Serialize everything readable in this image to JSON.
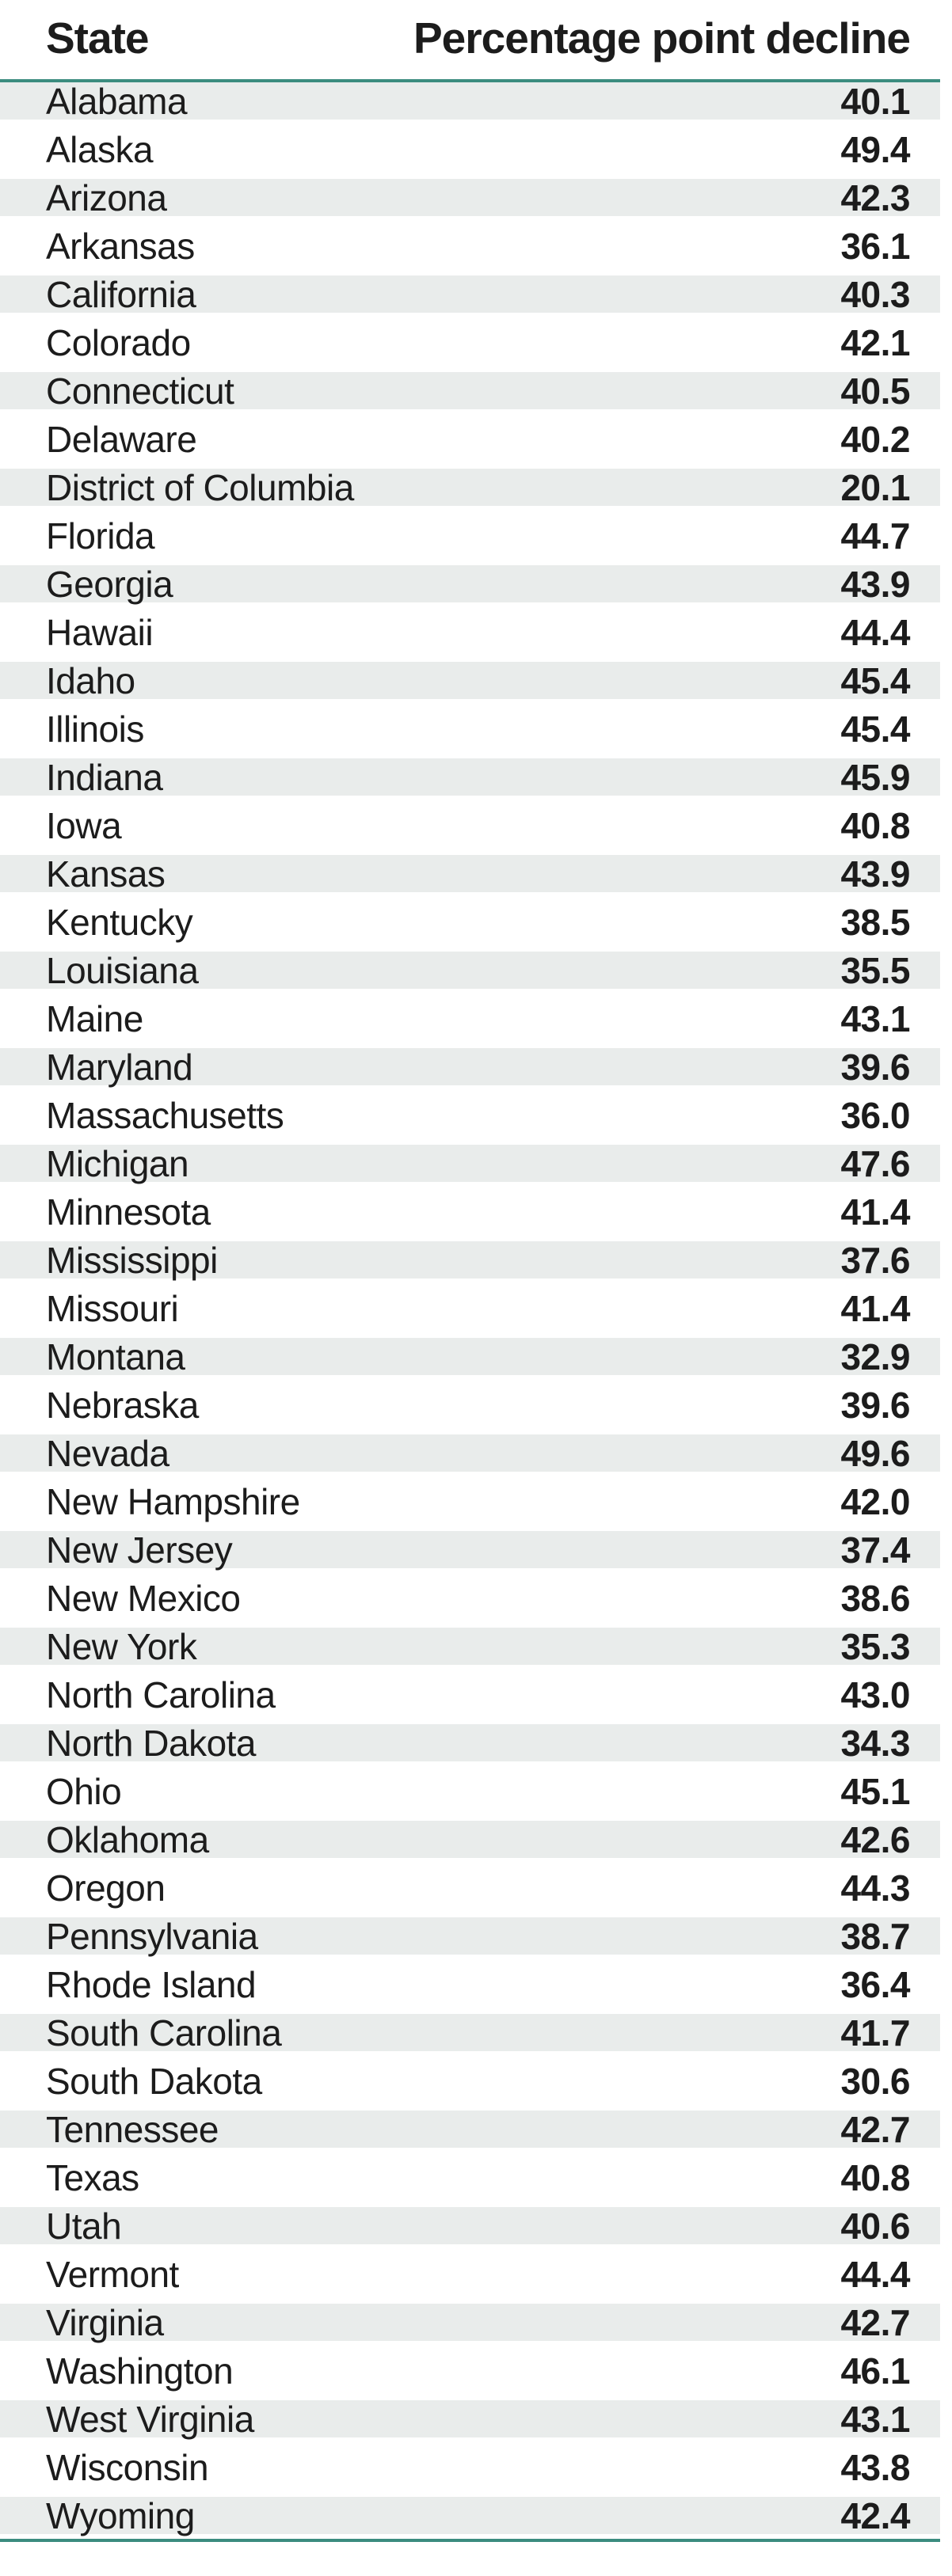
{
  "chart_data": {
    "type": "table",
    "columns": [
      "State",
      "Percentage point decline"
    ],
    "accent_color": "#3b8c7f",
    "stripe_color": "#e9eceb",
    "rows": [
      {
        "state": "Alabama",
        "value": 40.1
      },
      {
        "state": "Alaska",
        "value": 49.4
      },
      {
        "state": "Arizona",
        "value": 42.3
      },
      {
        "state": "Arkansas",
        "value": 36.1
      },
      {
        "state": "California",
        "value": 40.3
      },
      {
        "state": "Colorado",
        "value": 42.1
      },
      {
        "state": "Connecticut",
        "value": 40.5
      },
      {
        "state": "Delaware",
        "value": 40.2
      },
      {
        "state": "District of Columbia",
        "value": 20.1
      },
      {
        "state": "Florida",
        "value": 44.7
      },
      {
        "state": "Georgia",
        "value": 43.9
      },
      {
        "state": "Hawaii",
        "value": 44.4
      },
      {
        "state": "Idaho",
        "value": 45.4
      },
      {
        "state": "Illinois",
        "value": 45.4
      },
      {
        "state": "Indiana",
        "value": 45.9
      },
      {
        "state": "Iowa",
        "value": 40.8
      },
      {
        "state": "Kansas",
        "value": 43.9
      },
      {
        "state": "Kentucky",
        "value": 38.5
      },
      {
        "state": "Louisiana",
        "value": 35.5
      },
      {
        "state": "Maine",
        "value": 43.1
      },
      {
        "state": "Maryland",
        "value": 39.6
      },
      {
        "state": "Massachusetts",
        "value": 36.0
      },
      {
        "state": "Michigan",
        "value": 47.6
      },
      {
        "state": "Minnesota",
        "value": 41.4
      },
      {
        "state": "Mississippi",
        "value": 37.6
      },
      {
        "state": "Missouri",
        "value": 41.4
      },
      {
        "state": "Montana",
        "value": 32.9
      },
      {
        "state": "Nebraska",
        "value": 39.6
      },
      {
        "state": "Nevada",
        "value": 49.6
      },
      {
        "state": "New Hampshire",
        "value": 42.0
      },
      {
        "state": "New Jersey",
        "value": 37.4
      },
      {
        "state": "New Mexico",
        "value": 38.6
      },
      {
        "state": "New York",
        "value": 35.3
      },
      {
        "state": "North Carolina",
        "value": 43.0
      },
      {
        "state": "North Dakota",
        "value": 34.3
      },
      {
        "state": "Ohio",
        "value": 45.1
      },
      {
        "state": "Oklahoma",
        "value": 42.6
      },
      {
        "state": "Oregon",
        "value": 44.3
      },
      {
        "state": "Pennsylvania",
        "value": 38.7
      },
      {
        "state": "Rhode Island",
        "value": 36.4
      },
      {
        "state": "South Carolina",
        "value": 41.7
      },
      {
        "state": "South Dakota",
        "value": 30.6
      },
      {
        "state": "Tennessee",
        "value": 42.7
      },
      {
        "state": "Texas",
        "value": 40.8
      },
      {
        "state": "Utah",
        "value": 40.6
      },
      {
        "state": "Vermont",
        "value": 44.4
      },
      {
        "state": "Virginia",
        "value": 42.7
      },
      {
        "state": "Washington",
        "value": 46.1
      },
      {
        "state": "West Virginia",
        "value": 43.1
      },
      {
        "state": "Wisconsin",
        "value": 43.8
      },
      {
        "state": "Wyoming",
        "value": 42.4
      }
    ]
  }
}
